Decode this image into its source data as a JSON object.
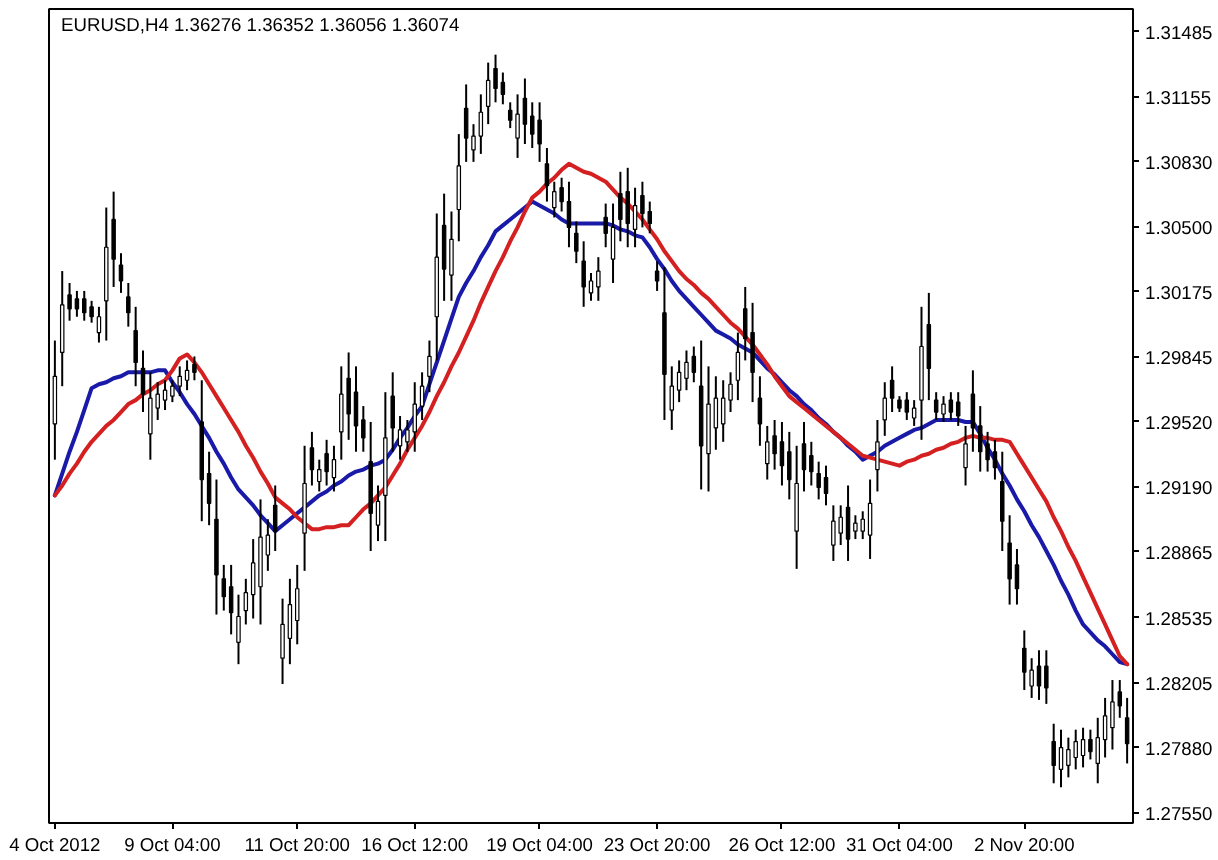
{
  "chart_data": {
    "type": "candlestick",
    "title": "EURUSD,H4  1.36276 1.36352 1.36056 1.36074",
    "categories": [
      "4 Oct 2012",
      null,
      null,
      null,
      null,
      null,
      null,
      null,
      null,
      null,
      null,
      null,
      null,
      null,
      null,
      null,
      "9 Oct 04:00",
      null,
      null,
      null,
      null,
      null,
      null,
      null,
      null,
      null,
      null,
      null,
      null,
      null,
      null,
      null,
      null,
      "11 Oct 20:00",
      null,
      null,
      null,
      null,
      null,
      null,
      null,
      null,
      null,
      null,
      null,
      null,
      null,
      null,
      null,
      "16 Oct 12:00",
      null,
      null,
      null,
      null,
      null,
      null,
      null,
      null,
      null,
      null,
      null,
      null,
      null,
      null,
      null,
      null,
      "19 Oct 04:00",
      null,
      null,
      null,
      null,
      null,
      null,
      null,
      null,
      null,
      null,
      null,
      null,
      null,
      null,
      null,
      "23 Oct 20:00",
      null,
      null,
      null,
      null,
      null,
      null,
      null,
      null,
      null,
      null,
      null,
      null,
      null,
      null,
      null,
      null,
      "26 Oct 12:00",
      null,
      null,
      null,
      null,
      null,
      null,
      null,
      null,
      null,
      null,
      null,
      null,
      null,
      null,
      null,
      "31 Oct 04:00",
      null,
      null,
      null,
      null,
      null,
      null,
      null,
      null,
      null,
      null,
      null,
      null,
      null,
      null,
      null,
      null,
      "2 Nov 20:00",
      null,
      null,
      null,
      null,
      null,
      null,
      null,
      null,
      null,
      null,
      null,
      null,
      null,
      null
    ],
    "ohlc": [
      [
        1.2951,
        1.2993,
        1.2933,
        1.2975
      ],
      [
        1.2987,
        1.3028,
        1.297,
        1.3011
      ],
      [
        1.3016,
        1.3022,
        1.3003,
        1.3009
      ],
      [
        1.3014,
        1.3018,
        1.3005,
        1.3009
      ],
      [
        1.3014,
        1.3018,
        1.3003,
        1.3007
      ],
      [
        1.301,
        1.3013,
        1.3002,
        1.3005
      ],
      [
        1.2997,
        1.301,
        1.2992,
        1.3005
      ],
      [
        1.3013,
        1.306,
        1.2993,
        1.304
      ],
      [
        1.3054,
        1.3068,
        1.302,
        1.3034
      ],
      [
        1.3031,
        1.3037,
        1.3017,
        1.3023
      ],
      [
        1.3015,
        1.3022,
        1.3,
        1.3007
      ],
      [
        1.2998,
        1.301,
        1.297,
        1.2982
      ],
      [
        1.2979,
        1.2988,
        1.2957,
        1.2966
      ],
      [
        1.2946,
        1.2977,
        1.2933,
        1.2964
      ],
      [
        1.2959,
        1.2972,
        1.2953,
        1.2966
      ],
      [
        1.2963,
        1.2973,
        1.2958,
        1.2968
      ],
      [
        1.2965,
        1.2973,
        1.2962,
        1.297
      ],
      [
        1.297,
        1.298,
        1.2965,
        1.2975
      ],
      [
        1.2973,
        1.2983,
        1.2968,
        1.2978
      ],
      [
        1.2981,
        1.2985,
        1.2973,
        1.2977
      ],
      [
        1.2952,
        1.2973,
        1.2902,
        1.2923
      ],
      [
        1.2926,
        1.2937,
        1.29,
        1.2911
      ],
      [
        1.2903,
        1.2923,
        1.2855,
        1.2875
      ],
      [
        1.2873,
        1.288,
        1.2857,
        1.2864
      ],
      [
        1.2869,
        1.288,
        1.2845,
        1.2856
      ],
      [
        1.2841,
        1.2865,
        1.283,
        1.2854
      ],
      [
        1.2857,
        1.2873,
        1.285,
        1.2866
      ],
      [
        1.2865,
        1.2893,
        1.2853,
        1.2881
      ],
      [
        1.2869,
        1.2913,
        1.285,
        1.2894
      ],
      [
        1.2885,
        1.2903,
        1.2877,
        1.2895
      ],
      [
        1.291,
        1.292,
        1.2887,
        1.2897
      ],
      [
        1.2833,
        1.2863,
        1.282,
        1.285
      ],
      [
        1.2843,
        1.2873,
        1.283,
        1.286
      ],
      [
        1.2852,
        1.288,
        1.284,
        1.2868
      ],
      [
        1.2896,
        1.294,
        1.2877,
        1.2921
      ],
      [
        1.2939,
        1.2947,
        1.292,
        1.2928
      ],
      [
        1.2922,
        1.2933,
        1.2917,
        1.2928
      ],
      [
        1.2936,
        1.2943,
        1.292,
        1.2927
      ],
      [
        1.2924,
        1.294,
        1.2917,
        1.2933
      ],
      [
        1.2947,
        1.298,
        1.2933,
        1.2966
      ],
      [
        1.2974,
        1.2987,
        1.2943,
        1.2956
      ],
      [
        1.2967,
        1.298,
        1.2937,
        1.295
      ],
      [
        1.2953,
        1.296,
        1.2937,
        1.2944
      ],
      [
        1.2932,
        1.2952,
        1.2887,
        1.2906
      ],
      [
        1.29,
        1.292,
        1.2892,
        1.2912
      ],
      [
        1.2915,
        1.2967,
        1.2892,
        1.2944
      ],
      [
        1.2965,
        1.2977,
        1.2937,
        1.2949
      ],
      [
        1.294,
        1.2955,
        1.2933,
        1.2948
      ],
      [
        1.2942,
        1.2953,
        1.2937,
        1.2948
      ],
      [
        1.2947,
        1.2972,
        1.2937,
        1.2961
      ],
      [
        1.296,
        1.2977,
        1.2953,
        1.297
      ],
      [
        1.2975,
        1.2993,
        1.2967,
        1.2985
      ],
      [
        1.3005,
        1.3057,
        1.2983,
        1.3035
      ],
      [
        1.3051,
        1.3067,
        1.3013,
        1.3029
      ],
      [
        1.3026,
        1.3058,
        1.3013,
        1.3044
      ],
      [
        1.3059,
        1.3097,
        1.3043,
        1.3081
      ],
      [
        1.311,
        1.3122,
        1.3083,
        1.3095
      ],
      [
        1.3089,
        1.3102,
        1.3083,
        1.3096
      ],
      [
        1.3096,
        1.3117,
        1.3087,
        1.3108
      ],
      [
        1.3111,
        1.3133,
        1.3102,
        1.3124
      ],
      [
        1.313,
        1.3137,
        1.3113,
        1.312
      ],
      [
        1.3123,
        1.3128,
        1.3112,
        1.3117
      ],
      [
        1.3109,
        1.3113,
        1.31,
        1.3104
      ],
      [
        1.3095,
        1.3117,
        1.3085,
        1.3107
      ],
      [
        1.3115,
        1.3125,
        1.3092,
        1.3102
      ],
      [
        1.3106,
        1.3113,
        1.309,
        1.3097
      ],
      [
        1.3104,
        1.3113,
        1.3083,
        1.3092
      ],
      [
        1.3082,
        1.309,
        1.3063,
        1.3071
      ],
      [
        1.306,
        1.3073,
        1.3055,
        1.3068
      ],
      [
        1.307,
        1.3075,
        1.3058,
        1.3063
      ],
      [
        1.3063,
        1.3073,
        1.304,
        1.305
      ],
      [
        1.3047,
        1.3053,
        1.3032,
        1.3038
      ],
      [
        1.3033,
        1.3043,
        1.301,
        1.302
      ],
      [
        1.3017,
        1.3027,
        1.3013,
        1.3023
      ],
      [
        1.302,
        1.3035,
        1.3013,
        1.3028
      ],
      [
        1.3055,
        1.3062,
        1.304,
        1.3047
      ],
      [
        1.3034,
        1.3062,
        1.3022,
        1.305
      ],
      [
        1.3067,
        1.3078,
        1.3043,
        1.3054
      ],
      [
        1.3068,
        1.308,
        1.304,
        1.3052
      ],
      [
        1.3049,
        1.307,
        1.304,
        1.3061
      ],
      [
        1.3066,
        1.3073,
        1.305,
        1.3057
      ],
      [
        1.3058,
        1.3063,
        1.3047,
        1.3052
      ],
      [
        1.3028,
        1.3033,
        1.3018,
        1.3023
      ],
      [
        1.3007,
        1.303,
        1.2953,
        1.2976
      ],
      [
        1.2958,
        1.298,
        1.2948,
        1.297
      ],
      [
        1.2968,
        1.2983,
        1.2962,
        1.2977
      ],
      [
        1.2974,
        1.2988,
        1.2968,
        1.2982
      ],
      [
        1.2985,
        1.299,
        1.2972,
        1.2977
      ],
      [
        1.297,
        1.2993,
        1.2918,
        1.294
      ],
      [
        1.2936,
        1.298,
        1.2917,
        1.2961
      ],
      [
        1.2949,
        1.2975,
        1.2938,
        1.2964
      ],
      [
        1.2951,
        1.2973,
        1.2942,
        1.2964
      ],
      [
        1.2963,
        1.2977,
        1.2957,
        1.2971
      ],
      [
        1.2973,
        1.2997,
        1.2963,
        1.2987
      ],
      [
        1.3009,
        1.302,
        1.2983,
        1.2994
      ],
      [
        1.2997,
        1.3012,
        1.2962,
        1.2977
      ],
      [
        1.2964,
        1.2975,
        1.294,
        1.2951
      ],
      [
        1.2931,
        1.295,
        1.2923,
        1.2942
      ],
      [
        1.2945,
        1.2953,
        1.2928,
        1.2936
      ],
      [
        1.2942,
        1.2952,
        1.292,
        1.293
      ],
      [
        1.2937,
        1.2947,
        1.2913,
        1.2923
      ],
      [
        1.2897,
        1.294,
        1.2878,
        1.2921
      ],
      [
        1.2941,
        1.2952,
        1.2917,
        1.2928
      ],
      [
        1.2935,
        1.2942,
        1.292,
        1.2927
      ],
      [
        1.2926,
        1.2932,
        1.2913,
        1.2919
      ],
      [
        1.2924,
        1.293,
        1.291,
        1.2916
      ],
      [
        1.289,
        1.291,
        1.2882,
        1.2902
      ],
      [
        1.2896,
        1.291,
        1.289,
        1.2904
      ],
      [
        1.2909,
        1.292,
        1.2882,
        1.2893
      ],
      [
        1.2897,
        1.2905,
        1.2893,
        1.2901
      ],
      [
        1.2897,
        1.2907,
        1.2893,
        1.2903
      ],
      [
        1.2895,
        1.2923,
        1.2883,
        1.2911
      ],
      [
        1.2928,
        1.2953,
        1.2917,
        1.2942
      ],
      [
        1.2953,
        1.2972,
        1.2945,
        1.2964
      ],
      [
        1.2973,
        1.298,
        1.2957,
        1.2964
      ],
      [
        1.2963,
        1.2965,
        1.2957,
        1.2959
      ],
      [
        1.2963,
        1.2967,
        1.2953,
        1.2957
      ],
      [
        1.2954,
        1.2963,
        1.295,
        1.2959
      ],
      [
        1.2963,
        1.301,
        1.2943,
        1.299
      ],
      [
        1.3001,
        1.3017,
        1.2963,
        1.2979
      ],
      [
        1.2963,
        1.2967,
        1.2953,
        1.2957
      ],
      [
        1.2956,
        1.2965,
        1.2952,
        1.2961
      ],
      [
        1.2963,
        1.2967,
        1.2953,
        1.2957
      ],
      [
        1.2962,
        1.2967,
        1.295,
        1.2955
      ],
      [
        1.2929,
        1.295,
        1.292,
        1.2941
      ],
      [
        1.2966,
        1.2978,
        1.2937,
        1.2949
      ],
      [
        1.295,
        1.296,
        1.2927,
        1.2937
      ],
      [
        1.2941,
        1.2947,
        1.2927,
        1.2933
      ],
      [
        1.2937,
        1.2943,
        1.2923,
        1.2929
      ],
      [
        1.2922,
        1.2937,
        1.2887,
        1.2902
      ],
      [
        1.2891,
        1.2905,
        1.286,
        1.2873
      ],
      [
        1.288,
        1.2888,
        1.286,
        1.2868
      ],
      [
        1.2838,
        1.2847,
        1.2817,
        1.2826
      ],
      [
        1.2819,
        1.2833,
        1.2813,
        1.2827
      ],
      [
        1.2829,
        1.2837,
        1.2812,
        1.2819
      ],
      [
        1.2829,
        1.2837,
        1.281,
        1.2818
      ],
      [
        1.2791,
        1.28,
        1.277,
        1.2779
      ],
      [
        1.2777,
        1.2797,
        1.2768,
        1.2788
      ],
      [
        1.2779,
        1.2793,
        1.2773,
        1.2787
      ],
      [
        1.2783,
        1.2797,
        1.2777,
        1.2791
      ],
      [
        1.2784,
        1.2798,
        1.2778,
        1.2792
      ],
      [
        1.2792,
        1.2797,
        1.2782,
        1.2786
      ],
      [
        1.278,
        1.2803,
        1.277,
        1.2793
      ],
      [
        1.2792,
        1.2813,
        1.2783,
        1.2804
      ],
      [
        1.2798,
        1.2822,
        1.2787,
        1.2811
      ],
      [
        1.2816,
        1.2822,
        1.2803,
        1.2809
      ],
      [
        1.2803,
        1.2813,
        1.278,
        1.279
      ]
    ],
    "series": [
      {
        "type": "line",
        "color": "#1a1aa8",
        "values": [
          1.2915,
          1.2926,
          1.2937,
          1.2947,
          1.2958,
          1.2969,
          1.2971,
          1.2972,
          1.2974,
          1.2975,
          1.2977,
          1.2977,
          1.2977,
          1.2977,
          1.2978,
          1.2978,
          1.2972,
          1.2967,
          1.2961,
          1.2956,
          1.295,
          1.2944,
          1.2937,
          1.2931,
          1.2924,
          1.2918,
          1.2914,
          1.291,
          1.2905,
          1.2901,
          1.2897,
          1.29,
          1.2903,
          1.2906,
          1.2909,
          1.2912,
          1.2915,
          1.2917,
          1.292,
          1.2922,
          1.2925,
          1.2927,
          1.2928,
          1.293,
          1.2931,
          1.2933,
          1.2938,
          1.2944,
          1.2949,
          1.2955,
          1.296,
          1.2971,
          1.2982,
          1.2993,
          1.3004,
          1.3015,
          1.3022,
          1.3028,
          1.3035,
          1.3041,
          1.3048,
          1.3051,
          1.3054,
          1.3057,
          1.306,
          1.3063,
          1.3061,
          1.3059,
          1.3057,
          1.3054,
          1.3052,
          1.3052,
          1.3052,
          1.3052,
          1.3052,
          1.3052,
          1.3051,
          1.3049,
          1.3048,
          1.3046,
          1.3045,
          1.304,
          1.3034,
          1.3029,
          1.3023,
          1.3018,
          1.3014,
          1.301,
          1.3006,
          1.3002,
          1.2998,
          1.2996,
          1.2994,
          1.2991,
          1.2989,
          1.2987,
          1.2983,
          1.2979,
          1.2976,
          1.2972,
          1.2968,
          1.2965,
          1.2961,
          1.2958,
          1.2954,
          1.2951,
          1.2947,
          1.2944,
          1.294,
          1.2937,
          1.2933,
          1.2935,
          1.2937,
          1.294,
          1.2942,
          1.2944,
          1.2946,
          1.2948,
          1.2949,
          1.2951,
          1.2953,
          1.2953,
          1.2953,
          1.2953,
          1.2952,
          1.2952,
          1.2946,
          1.2939,
          1.2933,
          1.2926,
          1.292,
          1.2913,
          1.2907,
          1.29,
          1.2894,
          1.2887,
          1.288,
          1.2872,
          1.2865,
          1.2857,
          1.285,
          1.2846,
          1.2842,
          1.2839,
          1.2835,
          1.2831,
          1.283
        ]
      },
      {
        "type": "line",
        "color": "#d42020",
        "values": [
          1.2915,
          1.292,
          1.2926,
          1.2931,
          1.2937,
          1.2942,
          1.2946,
          1.295,
          1.2953,
          1.2957,
          1.2961,
          1.2963,
          1.2966,
          1.2968,
          1.2971,
          1.2973,
          1.2978,
          1.2984,
          1.2986,
          1.2982,
          1.2977,
          1.2971,
          1.2965,
          1.2959,
          1.2953,
          1.2947,
          1.294,
          1.2934,
          1.2927,
          1.2921,
          1.2914,
          1.2911,
          1.2908,
          1.2904,
          1.2901,
          1.2898,
          1.2898,
          1.2899,
          1.2899,
          1.29,
          1.29,
          1.2904,
          1.2908,
          1.2911,
          1.2915,
          1.2919,
          1.2925,
          1.2931,
          1.2938,
          1.2944,
          1.295,
          1.2957,
          1.2965,
          1.2972,
          1.298,
          1.2987,
          1.2995,
          1.3003,
          1.3012,
          1.302,
          1.3028,
          1.3035,
          1.3043,
          1.305,
          1.3058,
          1.3065,
          1.3068,
          1.3072,
          1.3075,
          1.3079,
          1.3082,
          1.308,
          1.3078,
          1.3077,
          1.3075,
          1.3073,
          1.3069,
          1.3065,
          1.3062,
          1.3058,
          1.3054,
          1.3049,
          1.3044,
          1.3038,
          1.3033,
          1.3028,
          1.3024,
          1.3021,
          1.3017,
          1.3014,
          1.301,
          1.3006,
          1.3002,
          1.2999,
          1.2995,
          1.2991,
          1.2986,
          1.2981,
          1.2975,
          1.297,
          1.2965,
          1.2962,
          1.2959,
          1.2956,
          1.2953,
          1.295,
          1.2947,
          1.2944,
          1.2941,
          1.2938,
          1.2935,
          1.2934,
          1.2933,
          1.2932,
          1.2931,
          1.293,
          1.2932,
          1.2933,
          1.2935,
          1.2936,
          1.2938,
          1.2939,
          1.2941,
          1.2942,
          1.2944,
          1.2945,
          1.2944,
          1.2944,
          1.2943,
          1.2943,
          1.2942,
          1.2936,
          1.293,
          1.2924,
          1.2918,
          1.2912,
          1.2904,
          1.2897,
          1.2889,
          1.2882,
          1.2874,
          1.2866,
          1.2858,
          1.285,
          1.2842,
          1.2834,
          1.283
        ]
      }
    ],
    "ylim": [
      1.275,
      1.316
    ],
    "yticks": [
      {
        "value": 1.31485,
        "label": "1.31485"
      },
      {
        "value": 1.31155,
        "label": "1.31155"
      },
      {
        "value": 1.3083,
        "label": "1.30830"
      },
      {
        "value": 1.305,
        "label": "1.30500"
      },
      {
        "value": 1.30175,
        "label": "1.30175"
      },
      {
        "value": 1.29845,
        "label": "1.29845"
      },
      {
        "value": 1.2952,
        "label": "1.29520"
      },
      {
        "value": 1.2919,
        "label": "1.29190"
      },
      {
        "value": 1.28865,
        "label": "1.28865"
      },
      {
        "value": 1.28535,
        "label": "1.28535"
      },
      {
        "value": 1.28205,
        "label": "1.28205"
      },
      {
        "value": 1.2788,
        "label": "1.27880"
      },
      {
        "value": 1.2755,
        "label": "1.27550"
      }
    ],
    "grid": false
  }
}
